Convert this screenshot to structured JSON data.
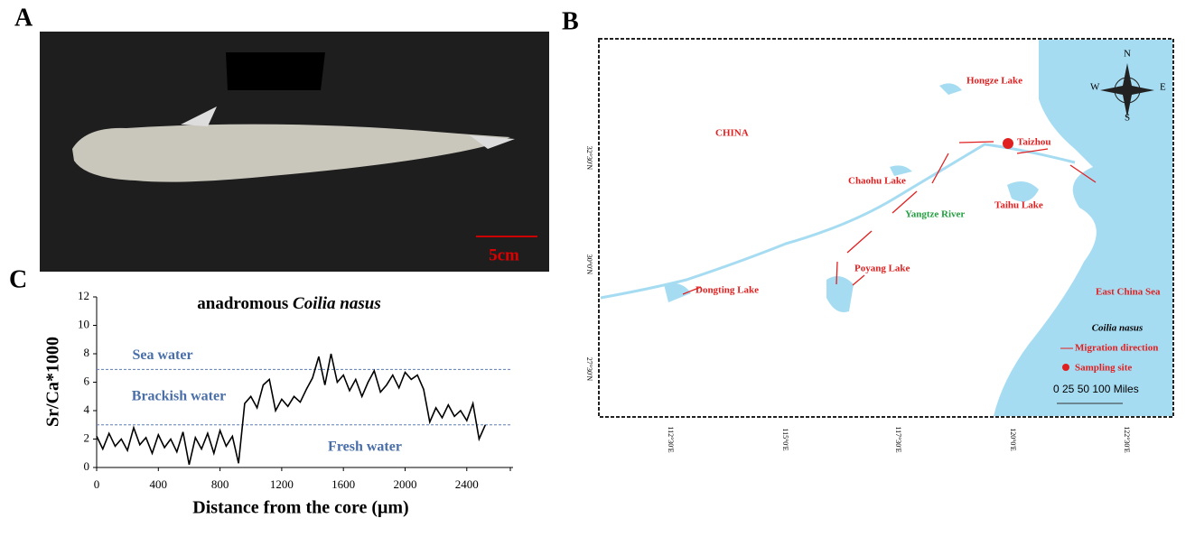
{
  "panels": {
    "a": "A",
    "b": "B",
    "c": "C"
  },
  "photo": {
    "scale_label": "5cm"
  },
  "map": {
    "places": [
      {
        "text": "Hongze Lake",
        "color": "#e02020"
      },
      {
        "text": "CHINA",
        "color": "#e02020"
      },
      {
        "text": "Taizhou",
        "color": "#e02020"
      },
      {
        "text": "Chaohu Lake",
        "color": "#e02020"
      },
      {
        "text": "Taihu Lake",
        "color": "#e02020"
      },
      {
        "text": "Yangtze River",
        "color": "#22a040"
      },
      {
        "text": "Poyang Lake",
        "color": "#e02020"
      },
      {
        "text": "Dongting Lake",
        "color": "#e02020"
      },
      {
        "text": "East China Sea",
        "color": "#e02020"
      }
    ],
    "compass": {
      "n": "N",
      "s": "S",
      "e": "E",
      "w": "W"
    },
    "legend": {
      "title": "Coilia nasus",
      "migration": "Migration direction",
      "site": "Sampling site"
    },
    "scale": "0  25 50     100 Miles",
    "lat_labels": [
      "32°30'N",
      "30°0'N",
      "27°30'N"
    ],
    "lon_labels": [
      "112°30'E",
      "115°0'E",
      "117°30'E",
      "120°0'E",
      "122°30'E"
    ]
  },
  "chart_data": {
    "type": "line",
    "title": {
      "text": "anadromous",
      "species": "Coilia nasus"
    },
    "x_label": "Distance from the core (μm)",
    "y_label": "Sr/Ca*1000",
    "xlim": [
      0,
      2700
    ],
    "xticks": [
      0,
      400,
      800,
      1200,
      1600,
      2000,
      2400
    ],
    "ylim": [
      0,
      12
    ],
    "yticks": [
      0,
      2,
      4,
      6,
      8,
      10,
      12
    ],
    "color": "#000000",
    "reference_lines": [
      {
        "value": 6.9,
        "color": "#5b7fb8"
      },
      {
        "value": 3,
        "color": "#5b7fb8"
      }
    ],
    "zones": [
      "Sea water",
      "Brackish water",
      "Fresh water"
    ],
    "x": [
      0,
      40,
      80,
      120,
      160,
      200,
      240,
      280,
      320,
      360,
      400,
      440,
      480,
      520,
      560,
      600,
      640,
      680,
      720,
      760,
      800,
      840,
      880,
      920,
      960,
      1000,
      1040,
      1080,
      1120,
      1160,
      1200,
      1240,
      1280,
      1320,
      1360,
      1400,
      1440,
      1480,
      1520,
      1560,
      1600,
      1640,
      1680,
      1720,
      1760,
      1800,
      1840,
      1880,
      1920,
      1960,
      2000,
      2040,
      2080,
      2120,
      2160,
      2200,
      2240,
      2280,
      2320,
      2360,
      2400,
      2440,
      2480,
      2520
    ],
    "values": [
      2.2,
      1.3,
      2.4,
      1.5,
      2.0,
      1.2,
      2.8,
      1.6,
      2.1,
      1.0,
      2.3,
      1.4,
      2.0,
      1.1,
      2.5,
      0.2,
      2.1,
      1.3,
      2.4,
      1.0,
      2.6,
      1.5,
      2.2,
      0.3,
      4.5,
      5.0,
      4.2,
      5.8,
      6.2,
      4.0,
      4.8,
      4.3,
      5.0,
      4.6,
      5.5,
      6.3,
      7.8,
      5.8,
      8.0,
      6.0,
      6.5,
      5.4,
      6.2,
      5.0,
      6.0,
      6.8,
      5.3,
      5.8,
      6.5,
      5.6,
      6.7,
      6.2,
      6.5,
      5.5,
      3.2,
      4.2,
      3.5,
      4.4,
      3.6,
      4.0,
      3.3,
      4.5,
      2.0,
      3.0
    ]
  }
}
